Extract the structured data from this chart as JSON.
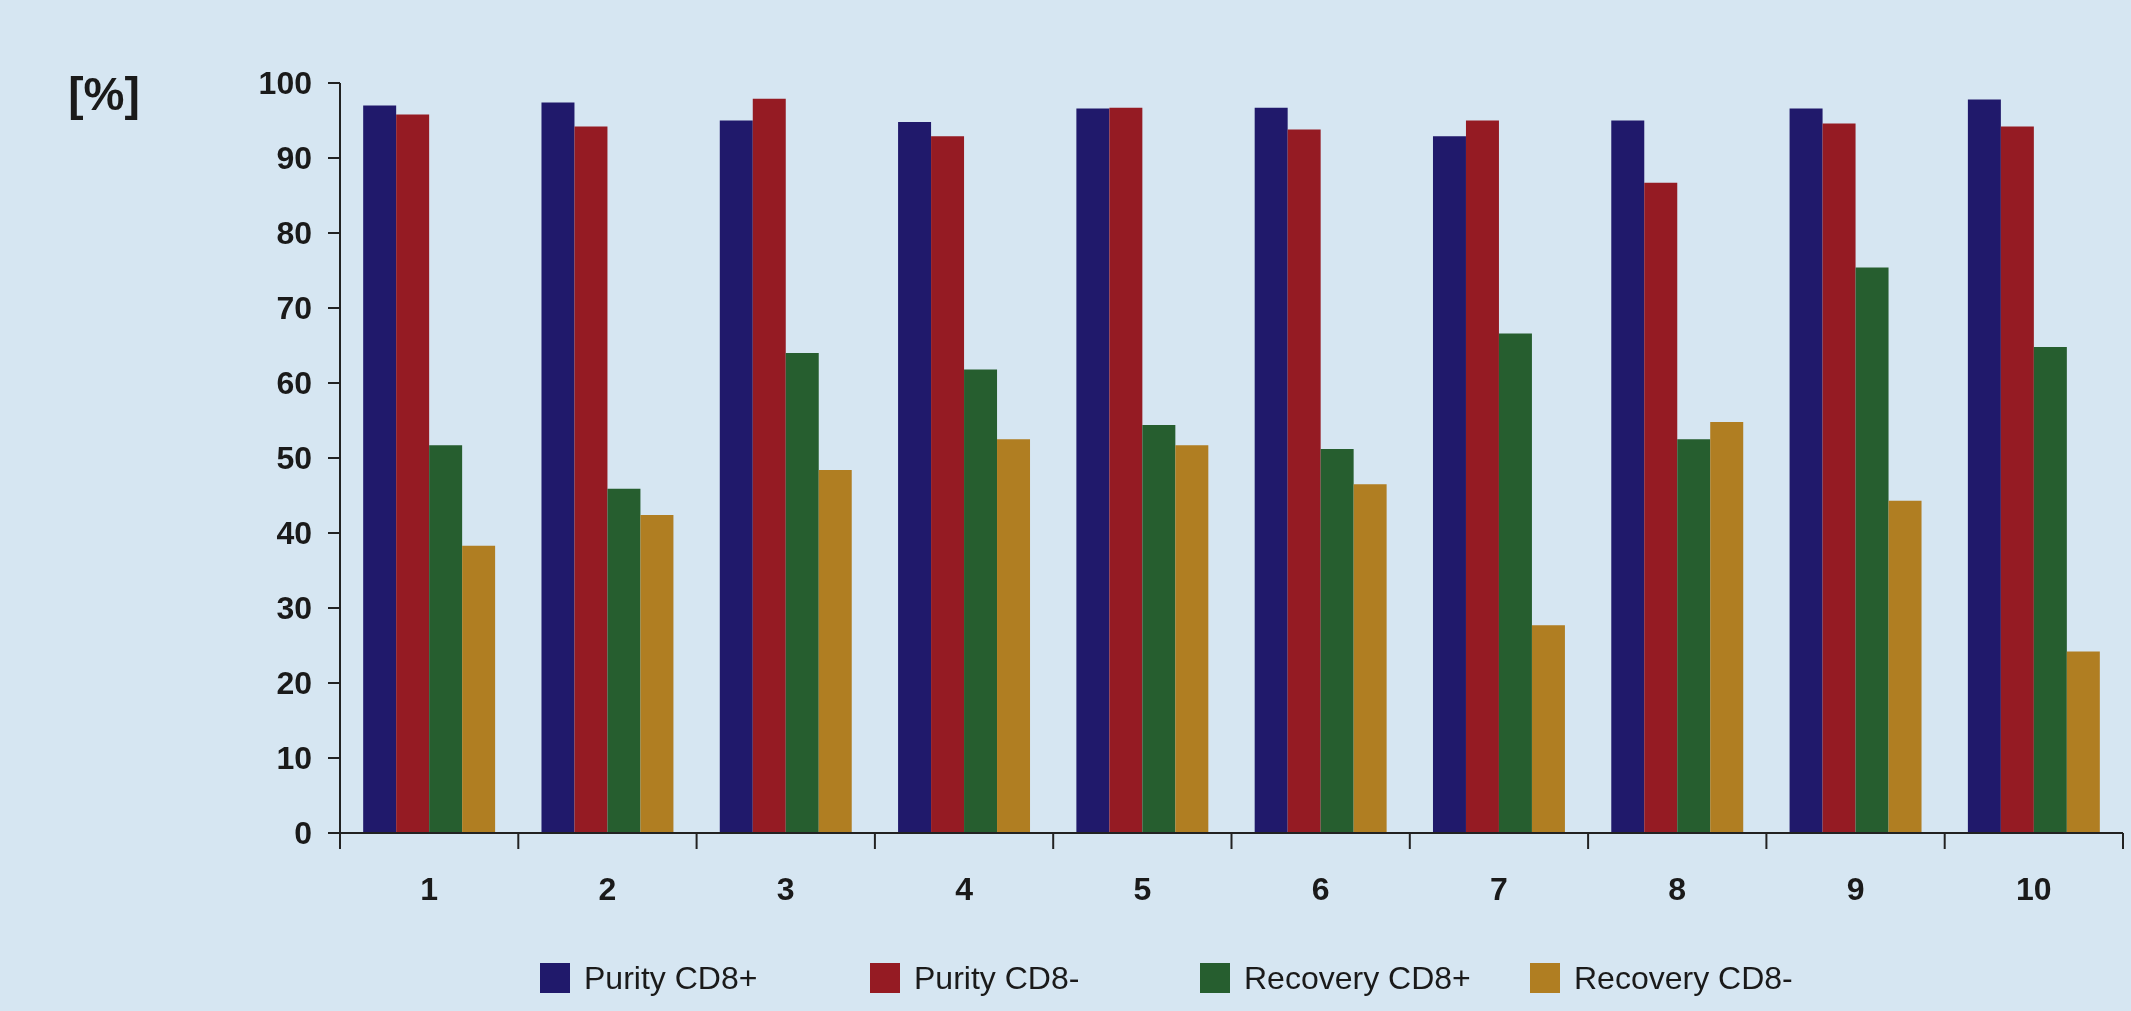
{
  "chart_data": {
    "type": "bar",
    "ylabel": "[%]",
    "categories": [
      "1",
      "2",
      "3",
      "4",
      "5",
      "6",
      "7",
      "8",
      "9",
      "10"
    ],
    "series": [
      {
        "name": "Purity CD8+",
        "color": "#20196b",
        "values": [
          97,
          97.4,
          95,
          94.8,
          96.6,
          96.7,
          92.9,
          95,
          96.6,
          97.8
        ]
      },
      {
        "name": "Purity CD8-",
        "color": "#951b23",
        "values": [
          95.8,
          94.2,
          97.9,
          92.9,
          96.7,
          93.8,
          95,
          86.7,
          94.6,
          94.2
        ]
      },
      {
        "name": "Recovery CD8+",
        "color": "#265e2f",
        "values": [
          51.7,
          45.9,
          64,
          61.8,
          54.4,
          51.2,
          66.6,
          52.5,
          75.4,
          64.8
        ]
      },
      {
        "name": "Recovery CD8-",
        "color": "#b07e22",
        "values": [
          38.3,
          42.4,
          48.4,
          52.5,
          51.7,
          46.5,
          27.7,
          54.8,
          44.3,
          24.2
        ]
      }
    ],
    "ylim": [
      0,
      100
    ],
    "yticks": [
      0,
      10,
      20,
      30,
      40,
      50,
      60,
      70,
      80,
      90,
      100
    ],
    "grid": false,
    "legend": "bottom"
  }
}
